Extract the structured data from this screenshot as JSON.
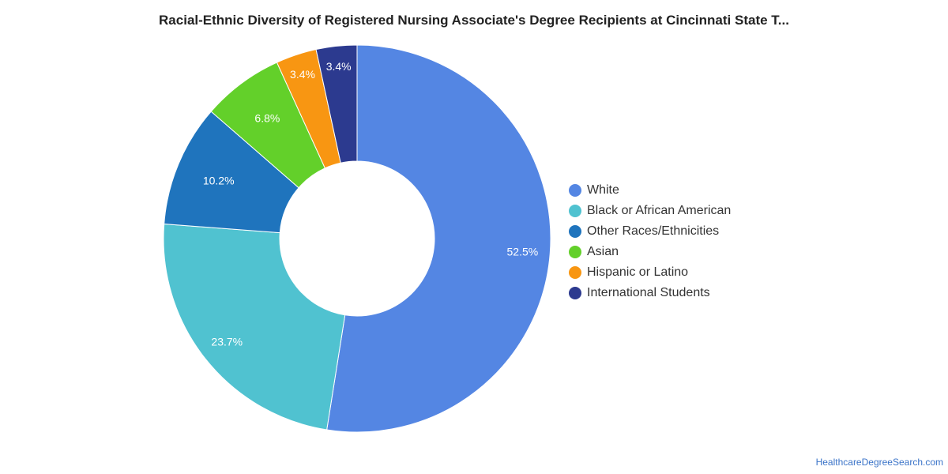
{
  "chart_data": {
    "type": "pie",
    "donut": true,
    "title": "Racial-Ethnic Diversity of Registered Nursing Associate's Degree Recipients at Cincinnati State T...",
    "categories": [
      "White",
      "Black or African American",
      "Other Races/Ethnicities",
      "Asian",
      "Hispanic or Latino",
      "International Students"
    ],
    "values": [
      52.5,
      23.7,
      10.2,
      6.8,
      3.4,
      3.4
    ],
    "value_labels": [
      "52.5%",
      "23.7%",
      "10.2%",
      "6.8%",
      "3.4%",
      "3.4%"
    ],
    "colors": [
      "#5486e3",
      "#50c2d0",
      "#1f74bd",
      "#63d02a",
      "#f89612",
      "#2c3a8f"
    ],
    "legend_position": "right"
  },
  "source": "HealthcareDegreeSearch.com"
}
